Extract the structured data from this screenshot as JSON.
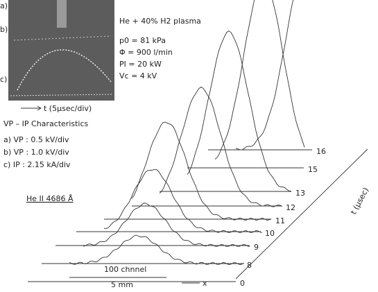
{
  "inset": {
    "labels": [
      "a)",
      "b)",
      "c)"
    ],
    "time_axis": "t (5μsec/div)",
    "caption": "VP – IP Characteristics",
    "scales": [
      "a) VP : 0.5 kV/div",
      "b) VP : 1.0 kV/div",
      "c) IP : 2.15 kA/div"
    ]
  },
  "conditions": {
    "title": "He + 40% H2 plasma",
    "lines": [
      "p0 = 81 kPa",
      "Φ = 900 l/min",
      "PI = 20 kW",
      "Vc = 4 kV"
    ]
  },
  "spectral_line": "He II 4686 Å",
  "axes": {
    "channel": "100 chnnel",
    "length": "5 mm",
    "x": "x",
    "t": "t (μsec)",
    "t_labels": [
      "0",
      "8",
      "9",
      "10",
      "11",
      "12",
      "13",
      "15",
      "16"
    ]
  }
}
